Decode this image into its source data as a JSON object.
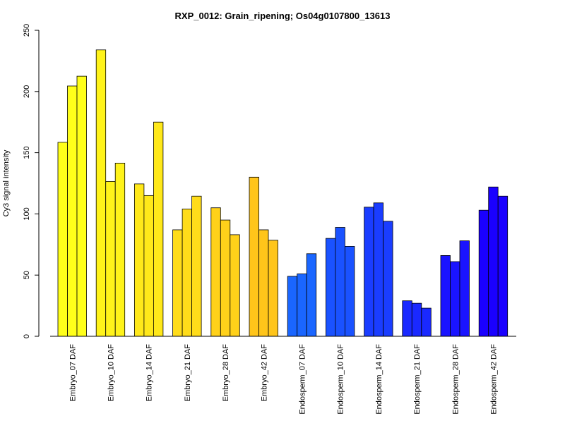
{
  "chart_data": {
    "type": "bar",
    "title": "RXP_0012: Grain_ripening; Os04g0107800_13613",
    "xlabel": "",
    "ylabel": "Cy3 signal intensity",
    "ylim": [
      0,
      250
    ],
    "yticks": [
      "0",
      "50",
      "100",
      "150",
      "200",
      "250"
    ],
    "grid": false,
    "categories": [
      "Embryo_07 DAF",
      "Embryo_10 DAF",
      "Embryo_14 DAF",
      "Embryo_21 DAF",
      "Embryo_28 DAF",
      "Embryo_42 DAF",
      "Endosperm_07 DAF",
      "Endosperm_10 DAF",
      "Endosperm_14 DAF",
      "Endosperm_21 DAF",
      "Endosperm_28 DAF",
      "Endosperm_42 DAF"
    ],
    "replicates_per_category": 3,
    "values": [
      [
        158.5,
        204.5,
        212.5
      ],
      [
        234.0,
        126.5,
        141.5
      ],
      [
        124.5,
        115.0,
        175.0
      ],
      [
        87.0,
        104.0,
        114.5
      ],
      [
        105.0,
        95.0,
        83.0
      ],
      [
        130.0,
        87.0,
        78.5
      ],
      [
        49.0,
        51.0,
        67.5
      ],
      [
        80.0,
        89.0,
        73.5
      ],
      [
        105.5,
        109.0,
        94.0
      ],
      [
        29.0,
        27.0,
        23.0
      ],
      [
        66.0,
        61.0,
        78.0
      ],
      [
        103.0,
        122.0,
        114.5
      ]
    ],
    "colors": [
      "#ffff1a",
      "#fff31a",
      "#ffe81a",
      "#ffdc1a",
      "#ffd11a",
      "#ffc51a",
      "#1a66ff",
      "#1a52ff",
      "#1a3dff",
      "#1a29ff",
      "#1a14ff",
      "#1a00ff"
    ]
  }
}
